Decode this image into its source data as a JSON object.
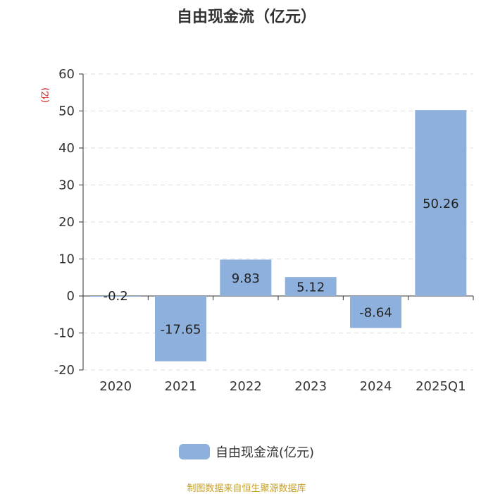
{
  "title": "自由现金流（亿元）",
  "unit_label": "(亿)",
  "legend_label": "自由现金流(亿元)",
  "source_note": "制图数据来自恒生聚源数据库",
  "colors": {
    "bar": "#8eb0dc",
    "unit": "#cc0000",
    "source": "#c8a020",
    "grid": "#dddddd",
    "axis": "#333333"
  },
  "chart_data": {
    "type": "bar",
    "categories": [
      "2020",
      "2021",
      "2022",
      "2023",
      "2024",
      "2025Q1"
    ],
    "series": [
      {
        "name": "自由现金流(亿元)",
        "values": [
          -0.2,
          -17.65,
          9.83,
          5.12,
          -8.64,
          50.26
        ]
      }
    ],
    "data_labels": [
      "-0.2",
      "-17.65",
      "9.83",
      "5.12",
      "-8.64",
      "50.26"
    ],
    "ylim": [
      -20,
      60
    ],
    "yticks": [
      60,
      50,
      40,
      30,
      20,
      10,
      0,
      -10,
      -20
    ],
    "grid": true,
    "legend_position": "bottom"
  }
}
